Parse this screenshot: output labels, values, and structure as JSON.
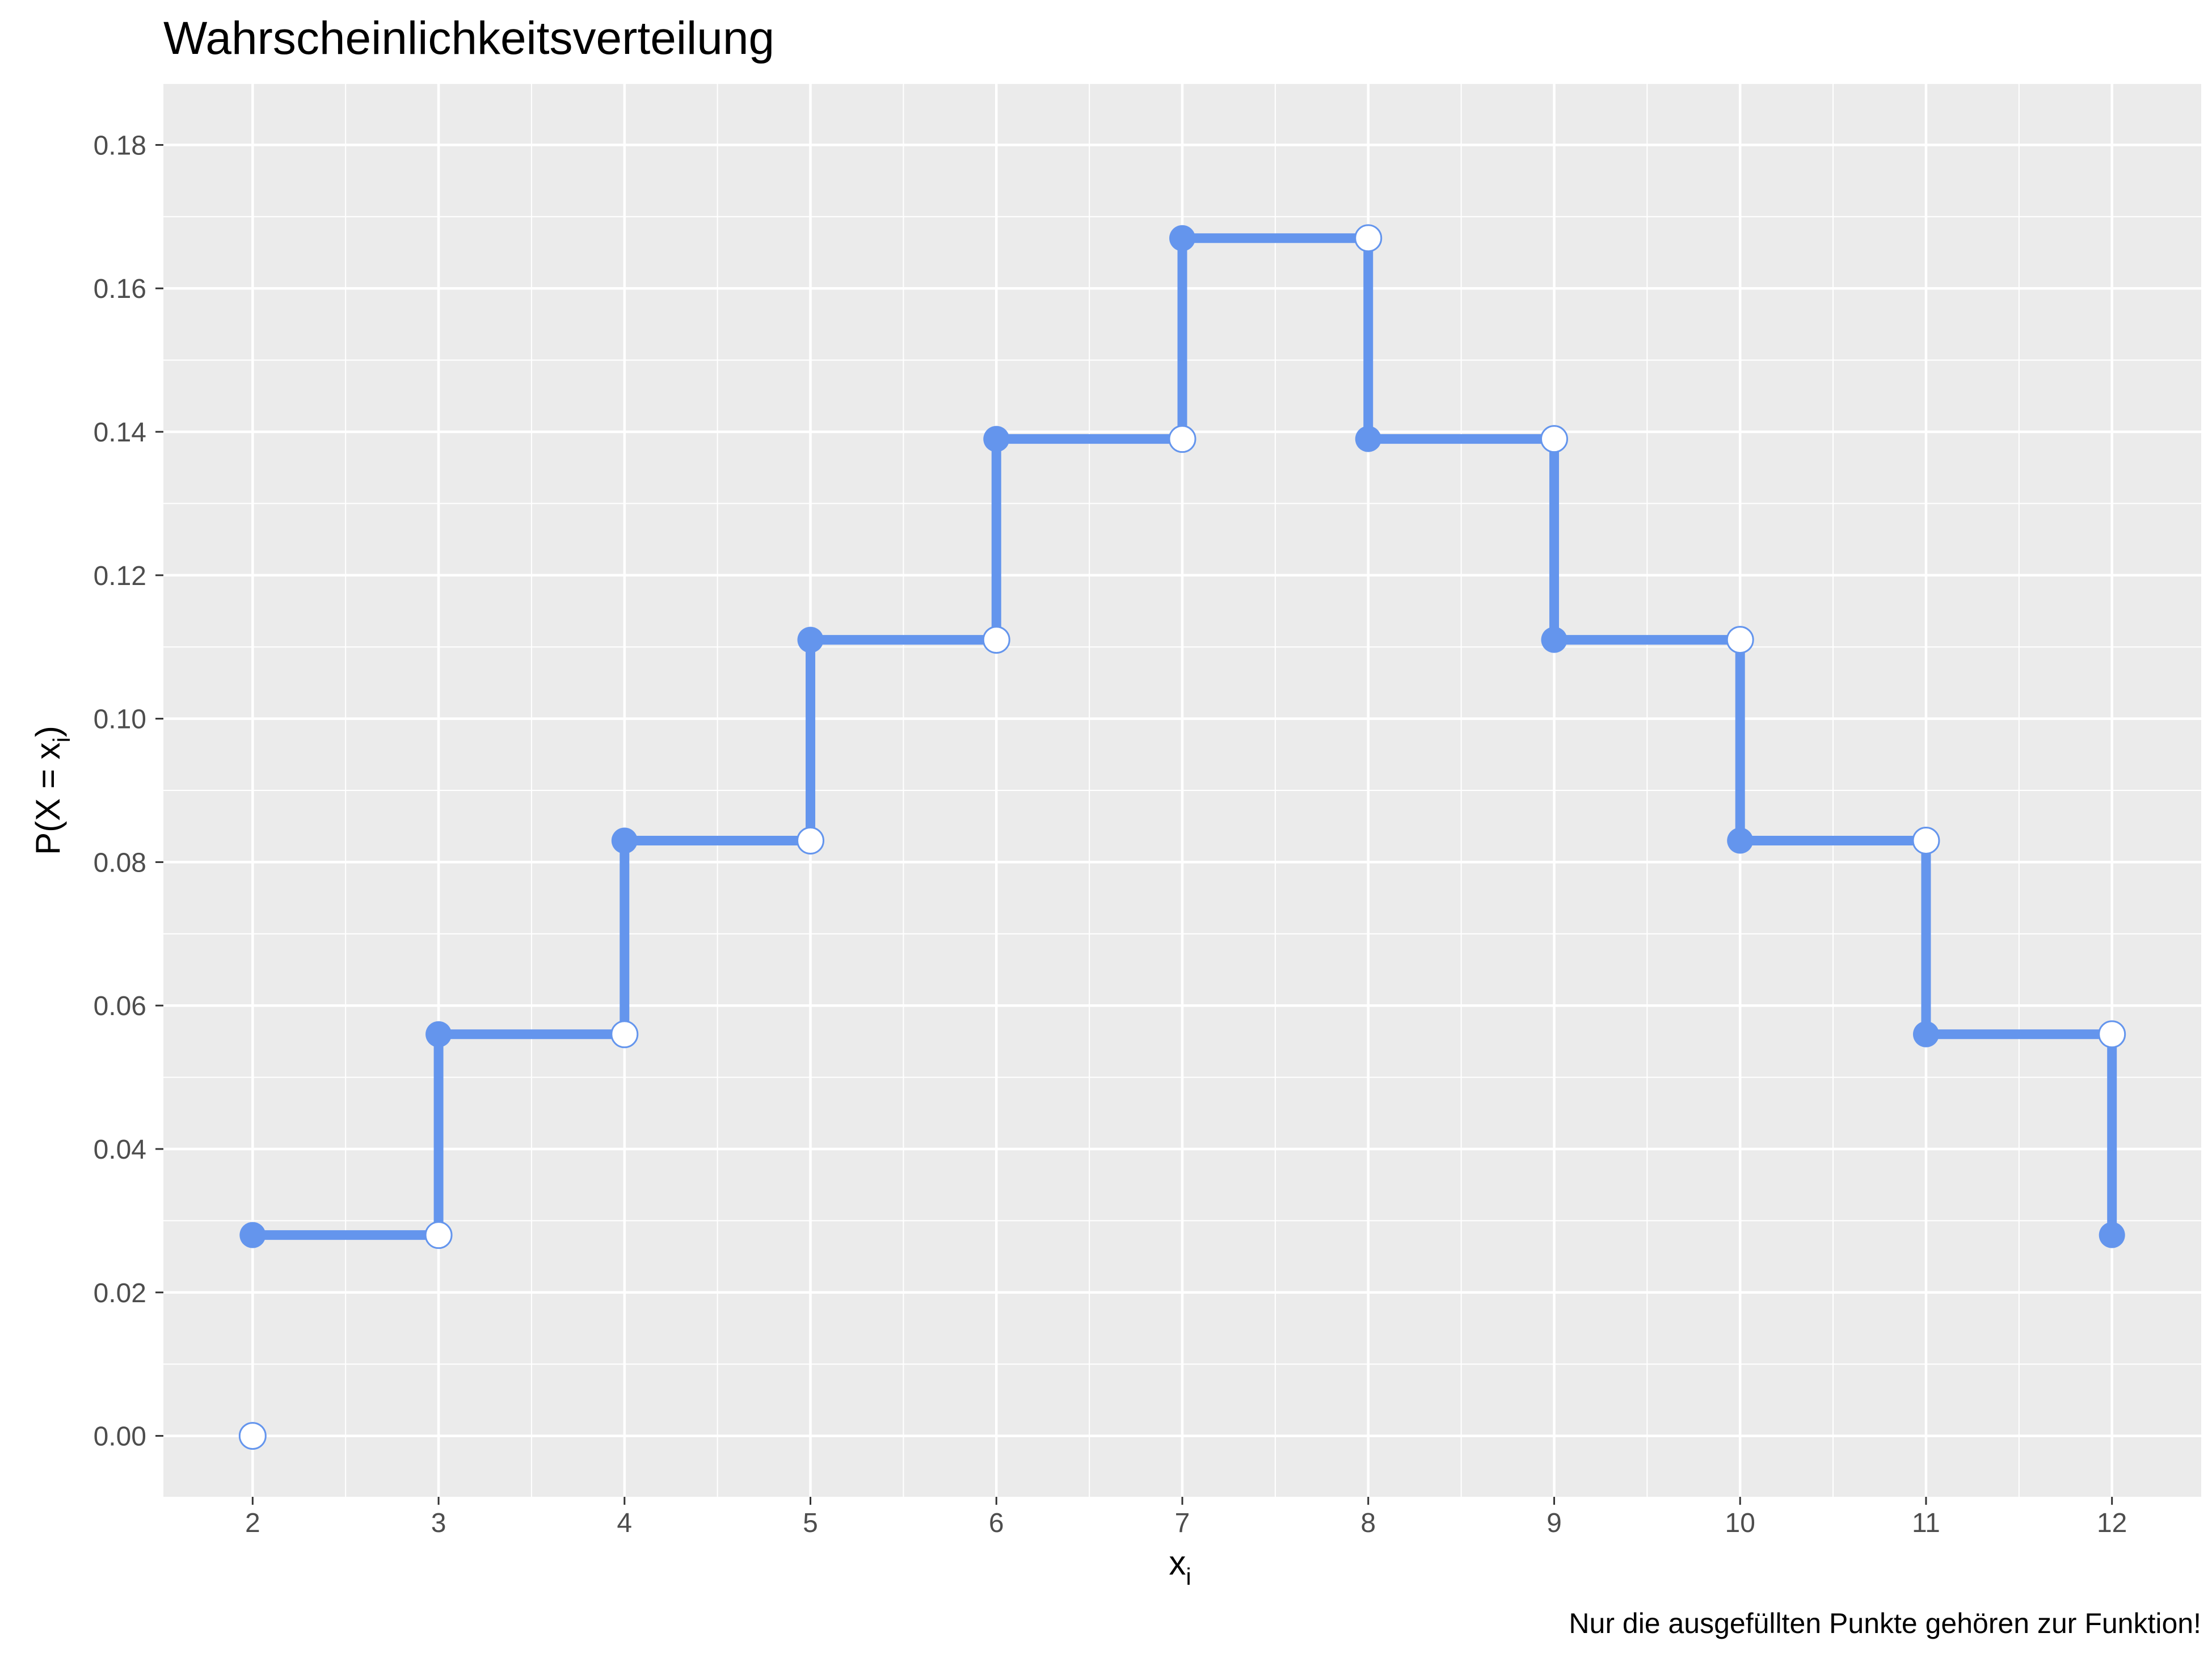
{
  "chart_data": {
    "type": "line",
    "subtype": "step-function",
    "title": "Wahrscheinlichkeitsverteilung",
    "xlabel": "x",
    "xlabel_subscript": "i",
    "ylabel": "P(X = x",
    "ylabel_subscript": "i",
    "ylabel_close": ")",
    "caption": "Nur die ausgefüllten Punkte gehören zur Funktion!",
    "xlim": [
      1.52,
      12.48
    ],
    "ylim": [
      -0.0085,
      0.1885
    ],
    "x_ticks": [
      2,
      3,
      4,
      5,
      6,
      7,
      8,
      9,
      10,
      11,
      12
    ],
    "y_ticks": [
      0.0,
      0.02,
      0.04,
      0.06,
      0.08,
      0.1,
      0.12,
      0.14,
      0.16,
      0.18
    ],
    "y_tick_labels": [
      "0.00",
      "0.02",
      "0.04",
      "0.06",
      "0.08",
      "0.10",
      "0.12",
      "0.14",
      "0.16",
      "0.18"
    ],
    "grid": true,
    "line_color": "#6495ED",
    "panel_color": "#EBEBEB",
    "steps": [
      {
        "x_start": 2,
        "x_end": 3,
        "y": 0.028
      },
      {
        "x_start": 3,
        "x_end": 4,
        "y": 0.056
      },
      {
        "x_start": 4,
        "x_end": 5,
        "y": 0.083
      },
      {
        "x_start": 5,
        "x_end": 6,
        "y": 0.111
      },
      {
        "x_start": 6,
        "x_end": 7,
        "y": 0.139
      },
      {
        "x_start": 7,
        "x_end": 8,
        "y": 0.167
      },
      {
        "x_start": 8,
        "x_end": 9,
        "y": 0.139
      },
      {
        "x_start": 9,
        "x_end": 10,
        "y": 0.111
      },
      {
        "x_start": 10,
        "x_end": 11,
        "y": 0.083
      },
      {
        "x_start": 11,
        "x_end": 12,
        "y": 0.056
      }
    ],
    "filled_points": [
      {
        "x": 2,
        "y": 0.028
      },
      {
        "x": 3,
        "y": 0.056
      },
      {
        "x": 4,
        "y": 0.083
      },
      {
        "x": 5,
        "y": 0.111
      },
      {
        "x": 6,
        "y": 0.139
      },
      {
        "x": 7,
        "y": 0.167
      },
      {
        "x": 8,
        "y": 0.139
      },
      {
        "x": 9,
        "y": 0.111
      },
      {
        "x": 10,
        "y": 0.083
      },
      {
        "x": 11,
        "y": 0.056
      },
      {
        "x": 12,
        "y": 0.028
      }
    ],
    "open_points": [
      {
        "x": 2,
        "y": 0.0
      },
      {
        "x": 3,
        "y": 0.028
      },
      {
        "x": 4,
        "y": 0.056
      },
      {
        "x": 5,
        "y": 0.083
      },
      {
        "x": 6,
        "y": 0.111
      },
      {
        "x": 7,
        "y": 0.139
      },
      {
        "x": 8,
        "y": 0.167
      },
      {
        "x": 9,
        "y": 0.139
      },
      {
        "x": 10,
        "y": 0.111
      },
      {
        "x": 11,
        "y": 0.083
      },
      {
        "x": 12,
        "y": 0.056
      }
    ]
  }
}
